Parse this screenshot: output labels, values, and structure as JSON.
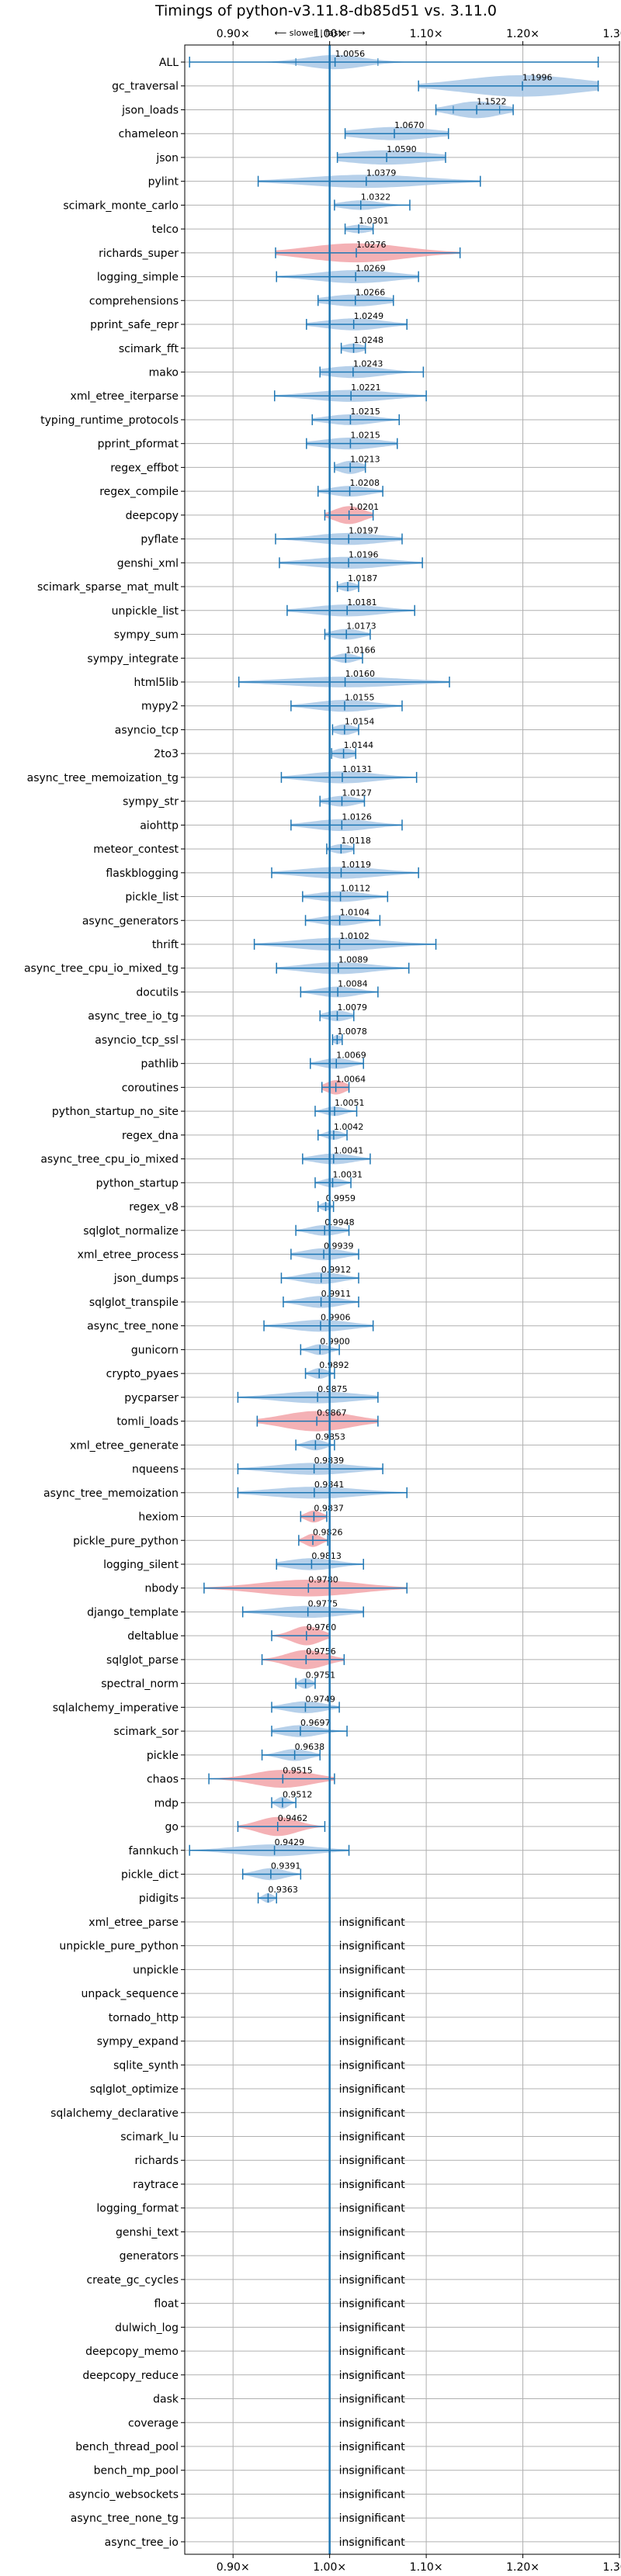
{
  "chart_data": {
    "type": "violin",
    "title": "Timings of python-v3.11.8-db85d51 vs. 3.11.0",
    "direction_label": "⟵ slower | faster ⟶",
    "x_ticks": [
      0.9,
      1.0,
      1.1,
      1.2,
      1.3
    ],
    "x_tick_labels": [
      "0.90×",
      "1.00×",
      "1.10×",
      "1.20×",
      "1.30×"
    ],
    "xlim": [
      0.85,
      1.3
    ],
    "reference_line": 1.0,
    "grid": true,
    "benchmarks": [
      {
        "name": "ALL",
        "value": 1.0056,
        "label": "1.0056",
        "min": 0.855,
        "max": 1.278,
        "p1": 0.965,
        "p3": 1.05,
        "spread": 0.03,
        "width": 0.6,
        "color": "blue"
      },
      {
        "name": "gc_traversal",
        "value": 1.1996,
        "label": "1.1996",
        "min": 1.092,
        "max": 1.278,
        "spread": 0.06,
        "width": 0.9,
        "color": "blue"
      },
      {
        "name": "json_loads",
        "value": 1.1522,
        "label": "1.1522",
        "min": 1.11,
        "max": 1.19,
        "p1": 1.128,
        "p3": 1.176,
        "spread": 0.025,
        "width": 0.7,
        "color": "blue"
      },
      {
        "name": "chameleon",
        "value": 1.067,
        "label": "1.0670",
        "min": 1.016,
        "max": 1.123,
        "spread": 0.04,
        "width": 0.55,
        "color": "blue"
      },
      {
        "name": "json",
        "value": 1.059,
        "label": "1.0590",
        "min": 1.008,
        "max": 1.12,
        "spread": 0.045,
        "width": 0.6,
        "color": "blue"
      },
      {
        "name": "pylint",
        "value": 1.0379,
        "label": "1.0379",
        "min": 0.926,
        "max": 1.156,
        "spread": 0.06,
        "width": 0.55,
        "color": "blue"
      },
      {
        "name": "scimark_monte_carlo",
        "value": 1.0322,
        "label": "1.0322",
        "min": 1.005,
        "max": 1.083,
        "spread": 0.02,
        "width": 0.4,
        "color": "blue"
      },
      {
        "name": "telco",
        "value": 1.0301,
        "label": "1.0301",
        "min": 1.016,
        "max": 1.045,
        "spread": 0.012,
        "width": 0.35,
        "color": "blue"
      },
      {
        "name": "richards_super",
        "value": 1.0276,
        "label": "1.0276",
        "min": 0.944,
        "max": 1.135,
        "spread": 0.05,
        "width": 0.8,
        "color": "red"
      },
      {
        "name": "logging_simple",
        "value": 1.0269,
        "label": "1.0269",
        "min": 0.945,
        "max": 1.092,
        "spread": 0.04,
        "width": 0.55,
        "color": "blue"
      },
      {
        "name": "comprehensions",
        "value": 1.0266,
        "label": "1.0266",
        "min": 0.988,
        "max": 1.066,
        "spread": 0.03,
        "width": 0.5,
        "color": "blue"
      },
      {
        "name": "pprint_safe_repr",
        "value": 1.0249,
        "label": "1.0249",
        "min": 0.976,
        "max": 1.08,
        "spread": 0.03,
        "width": 0.5,
        "color": "blue"
      },
      {
        "name": "scimark_fft",
        "value": 1.0248,
        "label": "1.0248",
        "min": 1.012,
        "max": 1.037,
        "spread": 0.01,
        "width": 0.4,
        "color": "blue"
      },
      {
        "name": "mako",
        "value": 1.0243,
        "label": "1.0243",
        "min": 0.99,
        "max": 1.097,
        "spread": 0.03,
        "width": 0.5,
        "color": "blue"
      },
      {
        "name": "xml_etree_iterparse",
        "value": 1.0221,
        "label": "1.0221",
        "min": 0.943,
        "max": 1.1,
        "spread": 0.04,
        "width": 0.5,
        "color": "blue"
      },
      {
        "name": "typing_runtime_protocols",
        "value": 1.0215,
        "label": "1.0215",
        "min": 0.982,
        "max": 1.072,
        "spread": 0.025,
        "width": 0.45,
        "color": "blue"
      },
      {
        "name": "pprint_pformat",
        "value": 1.0215,
        "label": "1.0215",
        "min": 0.976,
        "max": 1.07,
        "spread": 0.03,
        "width": 0.5,
        "color": "blue"
      },
      {
        "name": "regex_effbot",
        "value": 1.0213,
        "label": "1.0213",
        "min": 1.005,
        "max": 1.037,
        "spread": 0.012,
        "width": 0.55,
        "color": "blue"
      },
      {
        "name": "regex_compile",
        "value": 1.0208,
        "label": "1.0208",
        "min": 0.988,
        "max": 1.055,
        "spread": 0.02,
        "width": 0.45,
        "color": "blue"
      },
      {
        "name": "deepcopy",
        "value": 1.0201,
        "label": "1.0201",
        "min": 0.995,
        "max": 1.045,
        "spread": 0.015,
        "width": 0.75,
        "color": "red"
      },
      {
        "name": "pyflate",
        "value": 1.0197,
        "label": "1.0197",
        "min": 0.944,
        "max": 1.075,
        "spread": 0.035,
        "width": 0.5,
        "color": "blue"
      },
      {
        "name": "genshi_xml",
        "value": 1.0196,
        "label": "1.0196",
        "min": 0.948,
        "max": 1.096,
        "spread": 0.04,
        "width": 0.5,
        "color": "blue"
      },
      {
        "name": "scimark_sparse_mat_mult",
        "value": 1.0187,
        "label": "1.0187",
        "min": 1.008,
        "max": 1.03,
        "spread": 0.008,
        "width": 0.4,
        "color": "blue"
      },
      {
        "name": "unpickle_list",
        "value": 1.0181,
        "label": "1.0181",
        "min": 0.956,
        "max": 1.088,
        "spread": 0.035,
        "width": 0.5,
        "color": "blue"
      },
      {
        "name": "sympy_sum",
        "value": 1.0173,
        "label": "1.0173",
        "min": 0.995,
        "max": 1.042,
        "spread": 0.015,
        "width": 0.45,
        "color": "blue"
      },
      {
        "name": "sympy_integrate",
        "value": 1.0166,
        "label": "1.0166",
        "min": 1.0,
        "max": 1.034,
        "spread": 0.01,
        "width": 0.4,
        "color": "blue"
      },
      {
        "name": "html5lib",
        "value": 1.016,
        "label": "1.0160",
        "min": 0.906,
        "max": 1.124,
        "spread": 0.06,
        "width": 0.45,
        "color": "blue"
      },
      {
        "name": "mypy2",
        "value": 1.0155,
        "label": "1.0155",
        "min": 0.96,
        "max": 1.075,
        "spread": 0.03,
        "width": 0.5,
        "color": "blue"
      },
      {
        "name": "asyncio_tcp",
        "value": 1.0154,
        "label": "1.0154",
        "min": 1.003,
        "max": 1.03,
        "spread": 0.01,
        "width": 0.45,
        "color": "blue"
      },
      {
        "name": "2to3",
        "value": 1.0144,
        "label": "1.0144",
        "min": 1.002,
        "max": 1.027,
        "spread": 0.01,
        "width": 0.45,
        "color": "blue"
      },
      {
        "name": "async_tree_memoization_tg",
        "value": 1.0131,
        "label": "1.0131",
        "min": 0.95,
        "max": 1.09,
        "spread": 0.035,
        "width": 0.5,
        "color": "blue"
      },
      {
        "name": "sympy_str",
        "value": 1.0127,
        "label": "1.0127",
        "min": 0.99,
        "max": 1.036,
        "spread": 0.015,
        "width": 0.45,
        "color": "blue"
      },
      {
        "name": "aiohttp",
        "value": 1.0126,
        "label": "1.0126",
        "min": 0.96,
        "max": 1.075,
        "spread": 0.03,
        "width": 0.5,
        "color": "blue"
      },
      {
        "name": "meteor_contest",
        "value": 1.0118,
        "label": "1.0118",
        "min": 0.997,
        "max": 1.025,
        "spread": 0.01,
        "width": 0.4,
        "color": "blue"
      },
      {
        "name": "flaskblogging",
        "value": 1.0119,
        "label": "1.0119",
        "min": 0.94,
        "max": 1.092,
        "spread": 0.04,
        "width": 0.5,
        "color": "blue"
      },
      {
        "name": "pickle_list",
        "value": 1.0112,
        "label": "1.0112",
        "min": 0.972,
        "max": 1.06,
        "spread": 0.025,
        "width": 0.45,
        "color": "blue"
      },
      {
        "name": "async_generators",
        "value": 1.0104,
        "label": "1.0104",
        "min": 0.975,
        "max": 1.052,
        "spread": 0.02,
        "width": 0.45,
        "color": "blue"
      },
      {
        "name": "thrift",
        "value": 1.0102,
        "label": "1.0102",
        "min": 0.922,
        "max": 1.11,
        "spread": 0.045,
        "width": 0.55,
        "color": "blue"
      },
      {
        "name": "async_tree_cpu_io_mixed_tg",
        "value": 1.0089,
        "label": "1.0089",
        "min": 0.945,
        "max": 1.082,
        "spread": 0.035,
        "width": 0.5,
        "color": "blue"
      },
      {
        "name": "docutils",
        "value": 1.0084,
        "label": "1.0084",
        "min": 0.97,
        "max": 1.05,
        "spread": 0.02,
        "width": 0.45,
        "color": "blue"
      },
      {
        "name": "async_tree_io_tg",
        "value": 1.0079,
        "label": "1.0079",
        "min": 0.99,
        "max": 1.025,
        "spread": 0.012,
        "width": 0.45,
        "color": "blue"
      },
      {
        "name": "asyncio_tcp_ssl",
        "value": 1.0078,
        "label": "1.0078",
        "min": 1.003,
        "max": 1.013,
        "spread": 0.004,
        "width": 0.4,
        "color": "blue"
      },
      {
        "name": "pathlib",
        "value": 1.0069,
        "label": "1.0069",
        "min": 0.98,
        "max": 1.035,
        "spread": 0.015,
        "width": 0.45,
        "color": "blue"
      },
      {
        "name": "coroutines",
        "value": 1.0064,
        "label": "1.0064",
        "min": 0.992,
        "max": 1.02,
        "spread": 0.01,
        "width": 0.6,
        "color": "red"
      },
      {
        "name": "python_startup_no_site",
        "value": 1.0051,
        "label": "1.0051",
        "min": 0.985,
        "max": 1.028,
        "spread": 0.01,
        "width": 0.4,
        "color": "blue"
      },
      {
        "name": "regex_dna",
        "value": 1.0042,
        "label": "1.0042",
        "min": 0.988,
        "max": 1.018,
        "spread": 0.008,
        "width": 0.4,
        "color": "blue"
      },
      {
        "name": "async_tree_cpu_io_mixed",
        "value": 1.0041,
        "label": "1.0041",
        "min": 0.972,
        "max": 1.042,
        "spread": 0.02,
        "width": 0.45,
        "color": "blue"
      },
      {
        "name": "python_startup",
        "value": 1.0031,
        "label": "1.0031",
        "min": 0.985,
        "max": 1.022,
        "spread": 0.01,
        "width": 0.4,
        "color": "blue"
      },
      {
        "name": "regex_v8",
        "value": 0.9959,
        "label": "0.9959",
        "min": 0.988,
        "max": 1.004,
        "spread": 0.005,
        "width": 0.35,
        "color": "blue"
      },
      {
        "name": "sqlglot_normalize",
        "value": 0.9948,
        "label": "0.9948",
        "min": 0.965,
        "max": 1.02,
        "spread": 0.015,
        "width": 0.45,
        "color": "blue"
      },
      {
        "name": "xml_etree_process",
        "value": 0.9939,
        "label": "0.9939",
        "min": 0.96,
        "max": 1.03,
        "spread": 0.02,
        "width": 0.5,
        "color": "blue"
      },
      {
        "name": "json_dumps",
        "value": 0.9912,
        "label": "0.9912",
        "min": 0.95,
        "max": 1.03,
        "spread": 0.02,
        "width": 0.5,
        "color": "blue"
      },
      {
        "name": "sqlglot_transpile",
        "value": 0.9911,
        "label": "0.9911",
        "min": 0.952,
        "max": 1.03,
        "spread": 0.02,
        "width": 0.5,
        "color": "blue"
      },
      {
        "name": "async_tree_none",
        "value": 0.9906,
        "label": "0.9906",
        "min": 0.932,
        "max": 1.045,
        "spread": 0.03,
        "width": 0.5,
        "color": "blue"
      },
      {
        "name": "gunicorn",
        "value": 0.99,
        "label": "0.9900",
        "min": 0.97,
        "max": 1.01,
        "spread": 0.01,
        "width": 0.45,
        "color": "blue"
      },
      {
        "name": "crypto_pyaes",
        "value": 0.9892,
        "label": "0.9892",
        "min": 0.975,
        "max": 1.005,
        "spread": 0.008,
        "width": 0.45,
        "color": "blue"
      },
      {
        "name": "pycparser",
        "value": 0.9875,
        "label": "0.9875",
        "min": 0.905,
        "max": 1.05,
        "spread": 0.04,
        "width": 0.5,
        "color": "blue"
      },
      {
        "name": "tomli_loads",
        "value": 0.9867,
        "label": "0.9867",
        "min": 0.925,
        "max": 1.05,
        "spread": 0.035,
        "width": 0.85,
        "color": "red"
      },
      {
        "name": "xml_etree_generate",
        "value": 0.9853,
        "label": "0.9853",
        "min": 0.965,
        "max": 1.005,
        "spread": 0.01,
        "width": 0.45,
        "color": "blue"
      },
      {
        "name": "nqueens",
        "value": 0.9839,
        "label": "0.9839",
        "min": 0.905,
        "max": 1.055,
        "spread": 0.04,
        "width": 0.5,
        "color": "blue"
      },
      {
        "name": "async_tree_memoization",
        "value": 0.9841,
        "label": "0.9841",
        "min": 0.905,
        "max": 1.08,
        "spread": 0.045,
        "width": 0.5,
        "color": "blue"
      },
      {
        "name": "hexiom",
        "value": 0.9837,
        "label": "0.9837",
        "min": 0.97,
        "max": 0.997,
        "spread": 0.008,
        "width": 0.5,
        "color": "red"
      },
      {
        "name": "pickle_pure_python",
        "value": 0.9826,
        "label": "0.9826",
        "min": 0.968,
        "max": 0.998,
        "spread": 0.008,
        "width": 0.55,
        "color": "red"
      },
      {
        "name": "logging_silent",
        "value": 0.9813,
        "label": "0.9813",
        "min": 0.945,
        "max": 1.035,
        "spread": 0.025,
        "width": 0.5,
        "color": "blue"
      },
      {
        "name": "nbody",
        "value": 0.978,
        "label": "0.9780",
        "min": 0.87,
        "max": 1.08,
        "spread": 0.05,
        "width": 0.7,
        "color": "red"
      },
      {
        "name": "django_template",
        "value": 0.9775,
        "label": "0.9775",
        "min": 0.91,
        "max": 1.035,
        "spread": 0.035,
        "width": 0.5,
        "color": "blue"
      },
      {
        "name": "deltablue",
        "value": 0.976,
        "label": "0.9760",
        "min": 0.94,
        "max": 1.0,
        "spread": 0.015,
        "width": 0.8,
        "color": "red"
      },
      {
        "name": "sqlglot_parse",
        "value": 0.9756,
        "label": "0.9756",
        "min": 0.93,
        "max": 1.015,
        "spread": 0.02,
        "width": 0.8,
        "color": "red"
      },
      {
        "name": "spectral_norm",
        "value": 0.9751,
        "label": "0.9751",
        "min": 0.965,
        "max": 0.985,
        "spread": 0.006,
        "width": 0.45,
        "color": "blue"
      },
      {
        "name": "sqlalchemy_imperative",
        "value": 0.9749,
        "label": "0.9749",
        "min": 0.94,
        "max": 1.01,
        "spread": 0.02,
        "width": 0.5,
        "color": "blue"
      },
      {
        "name": "scimark_sor",
        "value": 0.9697,
        "label": "0.9697",
        "min": 0.94,
        "max": 1.018,
        "spread": 0.02,
        "width": 0.5,
        "color": "blue"
      },
      {
        "name": "pickle",
        "value": 0.9638,
        "label": "0.9638",
        "min": 0.93,
        "max": 0.99,
        "spread": 0.015,
        "width": 0.5,
        "color": "blue"
      },
      {
        "name": "chaos",
        "value": 0.9515,
        "label": "0.9515",
        "min": 0.875,
        "max": 1.005,
        "spread": 0.03,
        "width": 0.75,
        "color": "red"
      },
      {
        "name": "mdp",
        "value": 0.9512,
        "label": "0.9512",
        "min": 0.94,
        "max": 0.965,
        "spread": 0.006,
        "width": 0.5,
        "color": "blue"
      },
      {
        "name": "go",
        "value": 0.9462,
        "label": "0.9462",
        "min": 0.905,
        "max": 0.995,
        "spread": 0.02,
        "width": 0.8,
        "color": "red"
      },
      {
        "name": "fannkuch",
        "value": 0.9429,
        "label": "0.9429",
        "min": 0.855,
        "max": 1.02,
        "spread": 0.04,
        "width": 0.5,
        "color": "blue"
      },
      {
        "name": "pickle_dict",
        "value": 0.9391,
        "label": "0.9391",
        "min": 0.91,
        "max": 0.97,
        "spread": 0.015,
        "width": 0.5,
        "color": "blue"
      },
      {
        "name": "pidigits",
        "value": 0.9363,
        "label": "0.9363",
        "min": 0.926,
        "max": 0.945,
        "spread": 0.005,
        "width": 0.4,
        "color": "blue"
      },
      {
        "name": "xml_etree_parse",
        "label": "insignificant"
      },
      {
        "name": "unpickle_pure_python",
        "label": "insignificant"
      },
      {
        "name": "unpickle",
        "label": "insignificant"
      },
      {
        "name": "unpack_sequence",
        "label": "insignificant"
      },
      {
        "name": "tornado_http",
        "label": "insignificant"
      },
      {
        "name": "sympy_expand",
        "label": "insignificant"
      },
      {
        "name": "sqlite_synth",
        "label": "insignificant"
      },
      {
        "name": "sqlglot_optimize",
        "label": "insignificant"
      },
      {
        "name": "sqlalchemy_declarative",
        "label": "insignificant"
      },
      {
        "name": "scimark_lu",
        "label": "insignificant"
      },
      {
        "name": "richards",
        "label": "insignificant"
      },
      {
        "name": "raytrace",
        "label": "insignificant"
      },
      {
        "name": "logging_format",
        "label": "insignificant"
      },
      {
        "name": "genshi_text",
        "label": "insignificant"
      },
      {
        "name": "generators",
        "label": "insignificant"
      },
      {
        "name": "create_gc_cycles",
        "label": "insignificant"
      },
      {
        "name": "float",
        "label": "insignificant"
      },
      {
        "name": "dulwich_log",
        "label": "insignificant"
      },
      {
        "name": "deepcopy_memo",
        "label": "insignificant"
      },
      {
        "name": "deepcopy_reduce",
        "label": "insignificant"
      },
      {
        "name": "dask",
        "label": "insignificant"
      },
      {
        "name": "coverage",
        "label": "insignificant"
      },
      {
        "name": "bench_thread_pool",
        "label": "insignificant"
      },
      {
        "name": "bench_mp_pool",
        "label": "insignificant"
      },
      {
        "name": "asyncio_websockets",
        "label": "insignificant"
      },
      {
        "name": "async_tree_none_tg",
        "label": "insignificant"
      },
      {
        "name": "async_tree_io",
        "label": "insignificant"
      }
    ],
    "colors": {
      "blue_fill": "#a9c8e6",
      "red_fill": "#f2a3a8",
      "line": "#1f77b4",
      "grid": "#b0b0b0"
    }
  }
}
